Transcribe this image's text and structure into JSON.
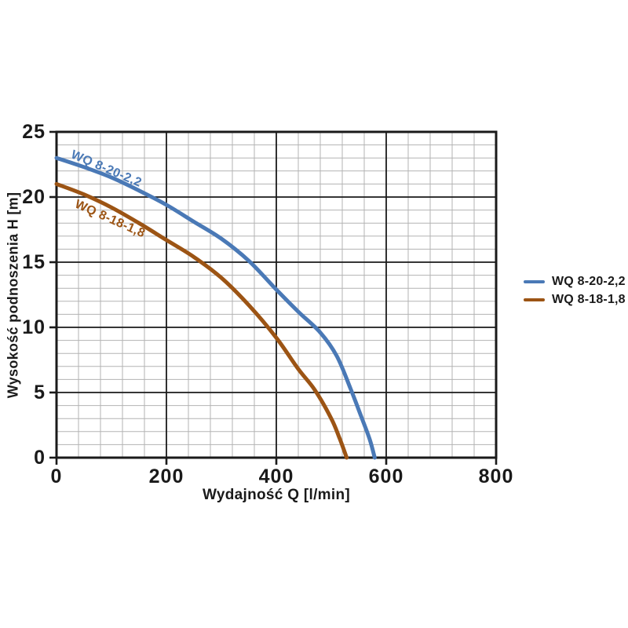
{
  "chart_data": {
    "type": "line",
    "title": "",
    "xlabel": "Wydajność Q [l/min]",
    "ylabel": "Wysokość podnoszenia H [m]",
    "xlim": [
      0,
      800
    ],
    "ylim": [
      0,
      25
    ],
    "x_ticks": [
      0,
      200,
      400,
      600,
      800
    ],
    "y_ticks": [
      0,
      5,
      10,
      15,
      20,
      25
    ],
    "x_minor_step": 40,
    "y_minor_step": 1,
    "grid": "major+minor",
    "legend_position": "right-outside",
    "colors": {
      "frame": "#1a1a1a",
      "major_grid": "#1a1a1a",
      "minor_grid": "#b3b3b3",
      "text": "#1a1a1a"
    },
    "series": [
      {
        "name": "WQ 8-20-2,2",
        "color": "#4a79b6",
        "points": [
          [
            0,
            23.0
          ],
          [
            50,
            22.3
          ],
          [
            100,
            21.5
          ],
          [
            150,
            20.5
          ],
          [
            200,
            19.4
          ],
          [
            250,
            18.1
          ],
          [
            300,
            16.8
          ],
          [
            350,
            15.1
          ],
          [
            400,
            12.9
          ],
          [
            440,
            11.2
          ],
          [
            480,
            9.6
          ],
          [
            510,
            7.8
          ],
          [
            535,
            5.3
          ],
          [
            555,
            3.1
          ],
          [
            570,
            1.4
          ],
          [
            579,
            0
          ]
        ]
      },
      {
        "name": "WQ 8-18-1,8",
        "color": "#9c5414",
        "points": [
          [
            0,
            21.0
          ],
          [
            50,
            20.2
          ],
          [
            100,
            19.2
          ],
          [
            150,
            18.0
          ],
          [
            200,
            16.7
          ],
          [
            250,
            15.4
          ],
          [
            300,
            13.8
          ],
          [
            350,
            11.7
          ],
          [
            400,
            9.2
          ],
          [
            440,
            6.8
          ],
          [
            470,
            5.2
          ],
          [
            500,
            3.0
          ],
          [
            515,
            1.5
          ],
          [
            528,
            0
          ]
        ]
      }
    ]
  }
}
